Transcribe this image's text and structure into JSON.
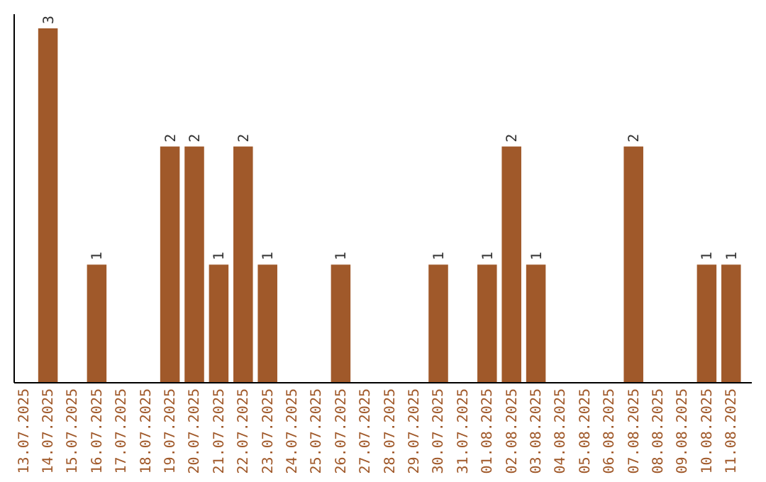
{
  "chart_data": {
    "type": "bar",
    "categories": [
      "13.07.2025",
      "14.07.2025",
      "15.07.2025",
      "16.07.2025",
      "17.07.2025",
      "18.07.2025",
      "19.07.2025",
      "20.07.2025",
      "21.07.2025",
      "22.07.2025",
      "23.07.2025",
      "24.07.2025",
      "25.07.2025",
      "26.07.2025",
      "27.07.2025",
      "28.07.2025",
      "29.07.2025",
      "30.07.2025",
      "31.07.2025",
      "01.08.2025",
      "02.08.2025",
      "03.08.2025",
      "04.08.2025",
      "05.08.2025",
      "06.08.2025",
      "07.08.2025",
      "08.08.2025",
      "09.08.2025",
      "10.08.2025",
      "11.08.2025"
    ],
    "values": [
      0,
      3,
      0,
      1,
      0,
      0,
      2,
      2,
      1,
      2,
      1,
      0,
      0,
      1,
      0,
      0,
      0,
      1,
      0,
      1,
      2,
      1,
      0,
      0,
      0,
      2,
      0,
      0,
      1,
      1
    ],
    "value_labels": [
      null,
      "3",
      null,
      "1",
      null,
      null,
      "2",
      "2",
      "1",
      "2",
      "1",
      null,
      null,
      "1",
      null,
      null,
      null,
      "1",
      null,
      "1",
      "2",
      "1",
      null,
      null,
      null,
      "2",
      null,
      null,
      "1",
      "1"
    ],
    "color": "#a0592a",
    "relative": false
  }
}
